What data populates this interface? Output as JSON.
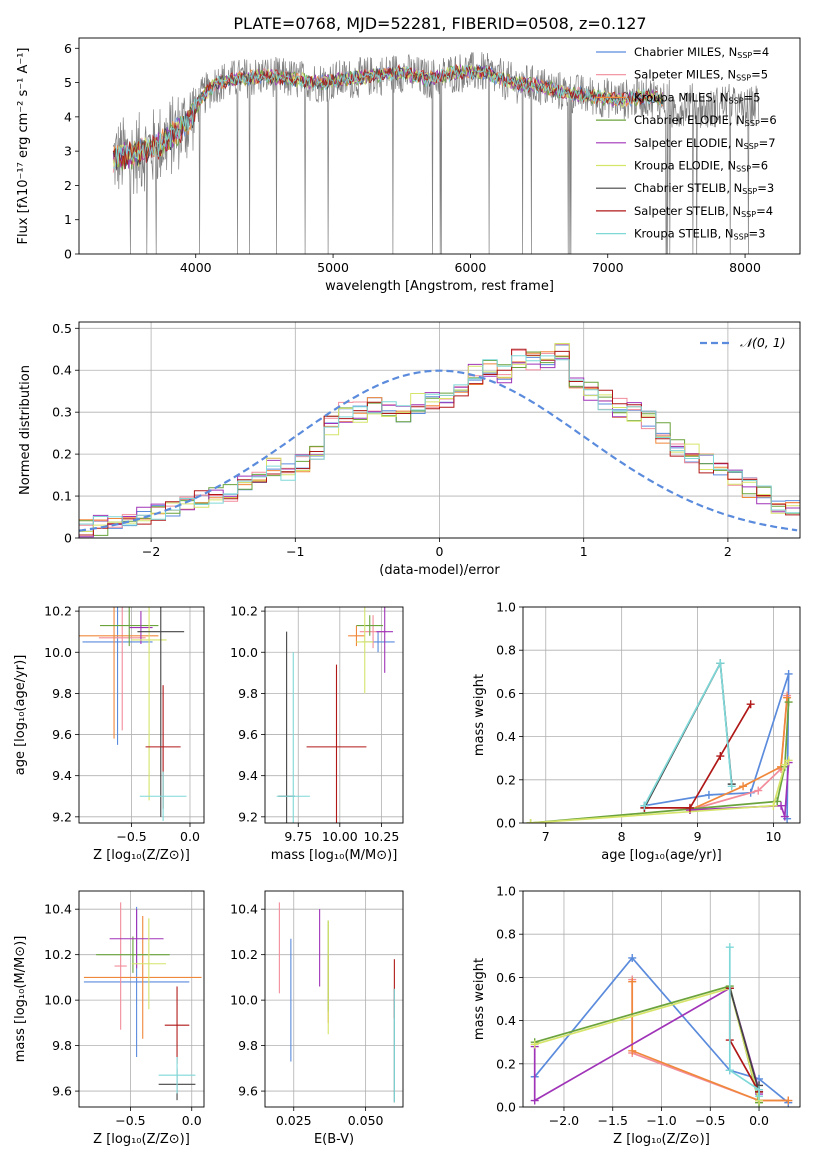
{
  "title": "PLATE=0768, MJD=52281, FIBERID=0508, z=0.127",
  "colors": {
    "chabrier_miles": "#5b8bdc",
    "salpeter_miles": "#f28c9a",
    "kroupa_miles": "#f0883c",
    "chabrier_elodie": "#6aa33c",
    "salpeter_elodie": "#a034b8",
    "kroupa_elodie": "#d6e46a",
    "chabrier_stelib": "#444444",
    "salpeter_stelib": "#b01818",
    "kroupa_stelib": "#7fd8d8",
    "data": "#808080",
    "normal": "#5b8bdc"
  },
  "chart_data": [
    {
      "id": "spectrum",
      "type": "line",
      "xlabel": "wavelength [Angstrom, rest frame]",
      "ylabel": "Flux [fλ10⁻¹⁷ erg cm⁻² s⁻¹ A⁻¹]",
      "xlim": [
        3150,
        8400
      ],
      "ylim": [
        0,
        6.3
      ],
      "xticks": [
        4000,
        5000,
        6000,
        7000,
        8000
      ],
      "yticks": [
        0,
        1,
        2,
        3,
        4,
        5,
        6
      ],
      "grid": false,
      "legend_position": "top-right",
      "legend": [
        {
          "label": "Chabrier MILES, N",
          "sub": "SSP",
          "val": "=4",
          "color": "chabrier_miles"
        },
        {
          "label": "Salpeter MILES, N",
          "sub": "SSP",
          "val": "=5",
          "color": "salpeter_miles"
        },
        {
          "label": "Kroupa MILES, N",
          "sub": "SSP",
          "val": "=5",
          "color": "kroupa_miles"
        },
        {
          "label": "Chabrier ELODIE, N",
          "sub": "SSP",
          "val": "=6",
          "color": "chabrier_elodie"
        },
        {
          "label": "Salpeter ELODIE, N",
          "sub": "SSP",
          "val": "=7",
          "color": "salpeter_elodie"
        },
        {
          "label": "Kroupa ELODIE, N",
          "sub": "SSP",
          "val": "=6",
          "color": "kroupa_elodie"
        },
        {
          "label": "Chabrier STELIB, N",
          "sub": "SSP",
          "val": "=3",
          "color": "chabrier_stelib"
        },
        {
          "label": "Salpeter STELIB, N",
          "sub": "SSP",
          "val": "=4",
          "color": "salpeter_stelib"
        },
        {
          "label": "Kroupa STELIB, N",
          "sub": "SSP",
          "val": "=3",
          "color": "kroupa_stelib"
        }
      ],
      "model_trend": [
        [
          3400,
          2.8
        ],
        [
          3550,
          2.9
        ],
        [
          3700,
          3.1
        ],
        [
          3850,
          3.5
        ],
        [
          3950,
          3.9
        ],
        [
          4050,
          4.6
        ],
        [
          4150,
          5.0
        ],
        [
          4300,
          5.1
        ],
        [
          4500,
          5.2
        ],
        [
          4700,
          5.1
        ],
        [
          4900,
          5.0
        ],
        [
          5100,
          5.1
        ],
        [
          5300,
          5.2
        ],
        [
          5500,
          5.3
        ],
        [
          5700,
          5.1
        ],
        [
          5900,
          5.3
        ],
        [
          6100,
          5.3
        ],
        [
          6300,
          5.0
        ],
        [
          6500,
          4.9
        ],
        [
          6700,
          4.7
        ],
        [
          6900,
          4.6
        ],
        [
          7100,
          4.5
        ],
        [
          7300,
          4.6
        ],
        [
          7400,
          4.5
        ]
      ],
      "data_range": [
        3400,
        8100
      ]
    },
    {
      "id": "residuals",
      "type": "bar",
      "xlabel": "(data-model)/error",
      "ylabel": "Normed distribution",
      "xlim": [
        -2.5,
        2.5
      ],
      "ylim": [
        0,
        0.515
      ],
      "xticks": [
        -2,
        -1,
        0,
        1,
        2
      ],
      "yticks": [
        0.0,
        0.1,
        0.2,
        0.3,
        0.4,
        0.5
      ],
      "grid": true,
      "legend_position": "top-right",
      "legend_label": "𝒩(0, 1)",
      "bin_width": 0.1,
      "bin_start": -2.5,
      "values": [
        0.025,
        0.03,
        0.035,
        0.04,
        0.05,
        0.06,
        0.07,
        0.08,
        0.09,
        0.1,
        0.11,
        0.13,
        0.15,
        0.17,
        0.16,
        0.18,
        0.21,
        0.27,
        0.3,
        0.3,
        0.32,
        0.31,
        0.3,
        0.32,
        0.33,
        0.33,
        0.36,
        0.39,
        0.4,
        0.39,
        0.43,
        0.42,
        0.42,
        0.44,
        0.38,
        0.35,
        0.33,
        0.31,
        0.3,
        0.28,
        0.25,
        0.22,
        0.2,
        0.18,
        0.16,
        0.14,
        0.12,
        0.1,
        0.08,
        0.07
      ]
    },
    {
      "id": "age-vs-z",
      "type": "scatter",
      "xlabel": "Z [log₁₀(Z/Z⊙)]",
      "ylabel": "age  [log₁₀(age/yr)]",
      "xlim": [
        -0.95,
        0.12
      ],
      "ylim": [
        9.17,
        10.22
      ],
      "xticks": [
        -0.5,
        0.0
      ],
      "xticklabels": [
        "−0.5",
        "0.0"
      ],
      "yticks": [
        9.2,
        9.4,
        9.6,
        9.8,
        10.0,
        10.2
      ],
      "grid": true,
      "points": [
        {
          "x": -0.62,
          "y": 10.05,
          "xerr": 0.3,
          "yerr": 0.5,
          "color": "chabrier_miles"
        },
        {
          "x": -0.58,
          "y": 10.07,
          "xerr": 0.2,
          "yerr": 0.45,
          "color": "salpeter_miles"
        },
        {
          "x": -0.65,
          "y": 10.08,
          "xerr": 0.38,
          "yerr": 0.5,
          "color": "kroupa_miles"
        },
        {
          "x": -0.52,
          "y": 10.13,
          "xerr": 0.25,
          "yerr": 0.1,
          "color": "chabrier_elodie"
        },
        {
          "x": -0.42,
          "y": 10.12,
          "xerr": 0.1,
          "yerr": 0.08,
          "color": "salpeter_elodie"
        },
        {
          "x": -0.35,
          "y": 10.06,
          "xerr": 0.15,
          "yerr": 0.78,
          "color": "kroupa_elodie"
        },
        {
          "x": -0.25,
          "y": 10.1,
          "xerr": 0.2,
          "yerr": 0.9,
          "color": "chabrier_stelib"
        },
        {
          "x": -0.23,
          "y": 9.54,
          "xerr": 0.15,
          "yerr": 0.3,
          "color": "salpeter_stelib"
        },
        {
          "x": -0.23,
          "y": 9.3,
          "xerr": 0.2,
          "yerr": 0.12,
          "color": "kroupa_stelib"
        }
      ]
    },
    {
      "id": "age-vs-mass",
      "type": "scatter",
      "xlabel": "mass [log₁₀(M/M⊙)]",
      "ylabel": "",
      "xlim": [
        9.55,
        10.38
      ],
      "ylim": [
        9.17,
        10.22
      ],
      "xticks": [
        9.75,
        10.0,
        10.25
      ],
      "xticklabels": [
        "9.75",
        "10.00",
        "10.25"
      ],
      "yticks": [
        9.2,
        9.4,
        9.6,
        9.8,
        10.0,
        10.2
      ],
      "grid": true,
      "points": [
        {
          "x": 10.23,
          "y": 10.05,
          "xerr": 0.1,
          "yerr": 0.05,
          "color": "chabrier_miles"
        },
        {
          "x": 10.2,
          "y": 10.1,
          "xerr": 0.08,
          "yerr": 0.08,
          "color": "salpeter_miles"
        },
        {
          "x": 10.1,
          "y": 10.08,
          "xerr": 0.05,
          "yerr": 0.05,
          "color": "kroupa_miles"
        },
        {
          "x": 10.18,
          "y": 10.13,
          "xerr": 0.08,
          "yerr": 0.05,
          "color": "chabrier_elodie"
        },
        {
          "x": 10.27,
          "y": 10.1,
          "xerr": 0.05,
          "yerr": 0.2,
          "color": "salpeter_elodie"
        },
        {
          "x": 10.15,
          "y": 10.05,
          "xerr": 0.05,
          "yerr": 0.25,
          "color": "kroupa_elodie"
        },
        {
          "x": 9.68,
          "y": 9.3,
          "xerr": 0.05,
          "yerr": 0.8,
          "color": "chabrier_stelib"
        },
        {
          "x": 9.98,
          "y": 9.54,
          "xerr": 0.18,
          "yerr": 0.4,
          "color": "salpeter_stelib"
        },
        {
          "x": 9.72,
          "y": 9.3,
          "xerr": 0.1,
          "yerr": 0.7,
          "color": "kroupa_stelib"
        }
      ]
    },
    {
      "id": "weight-vs-age",
      "type": "line",
      "xlabel": "age  [log₁₀(age/yr)]",
      "ylabel": "mass weight",
      "xlim": [
        6.7,
        10.35
      ],
      "ylim": [
        0,
        1
      ],
      "xticks": [
        7,
        8,
        9,
        10
      ],
      "yticks": [
        0.0,
        0.2,
        0.4,
        0.6,
        0.8,
        1.0
      ],
      "grid": true,
      "series": [
        {
          "color": "chabrier_miles",
          "x": [
            8.3,
            9.15,
            9.7,
            10.2,
            10.18
          ],
          "y": [
            0.08,
            0.13,
            0.14,
            0.69,
            0.02
          ]
        },
        {
          "color": "salpeter_miles",
          "x": [
            8.9,
            9.8,
            10.1,
            10.18
          ],
          "y": [
            0.06,
            0.15,
            0.25,
            0.59
          ]
        },
        {
          "color": "kroupa_miles",
          "x": [
            8.9,
            9.6,
            10.1,
            10.18
          ],
          "y": [
            0.06,
            0.17,
            0.26,
            0.58
          ]
        },
        {
          "color": "chabrier_elodie",
          "x": [
            6.8,
            10.05,
            10.15,
            10.2
          ],
          "y": [
            0.0,
            0.1,
            0.26,
            0.56
          ]
        },
        {
          "color": "salpeter_elodie",
          "x": [
            8.9,
            10.1,
            10.15,
            10.2
          ],
          "y": [
            0.06,
            0.08,
            0.03,
            0.28
          ]
        },
        {
          "color": "kroupa_elodie",
          "x": [
            6.8,
            10.0,
            10.15,
            10.2
          ],
          "y": [
            0.0,
            0.08,
            0.27,
            0.29
          ]
        },
        {
          "color": "chabrier_stelib",
          "x": [
            8.3,
            9.3,
            9.45
          ],
          "y": [
            0.07,
            0.74,
            0.18
          ]
        },
        {
          "color": "salpeter_stelib",
          "x": [
            8.3,
            8.9,
            9.3,
            9.7
          ],
          "y": [
            0.07,
            0.07,
            0.31,
            0.55
          ]
        },
        {
          "color": "kroupa_stelib",
          "x": [
            8.3,
            9.3,
            9.45
          ],
          "y": [
            0.08,
            0.74,
            0.17
          ]
        }
      ]
    },
    {
      "id": "mass-vs-z",
      "type": "scatter",
      "xlabel": "Z [log₁₀(Z/Z⊙)]",
      "ylabel": "mass [log₁₀(M/M⊙)]",
      "xlim": [
        -0.92,
        0.1
      ],
      "ylim": [
        9.53,
        10.48
      ],
      "xticks": [
        -0.5,
        0.0
      ],
      "xticklabels": [
        "−0.5",
        "0.0"
      ],
      "yticks": [
        9.6,
        9.8,
        10.0,
        10.2,
        10.4
      ],
      "grid": true,
      "points": [
        {
          "x": -0.45,
          "y": 10.08,
          "xerr": 0.43,
          "yerr": 0.33,
          "color": "chabrier_miles"
        },
        {
          "x": -0.58,
          "y": 10.15,
          "xerr": 0.05,
          "yerr": 0.28,
          "color": "salpeter_miles"
        },
        {
          "x": -0.4,
          "y": 10.1,
          "xerr": 0.48,
          "yerr": 0.27,
          "color": "kroupa_miles"
        },
        {
          "x": -0.48,
          "y": 10.2,
          "xerr": 0.3,
          "yerr": 0.08,
          "color": "chabrier_elodie"
        },
        {
          "x": -0.45,
          "y": 10.27,
          "xerr": 0.22,
          "yerr": 0.13,
          "color": "salpeter_elodie"
        },
        {
          "x": -0.35,
          "y": 10.16,
          "xerr": 0.14,
          "yerr": 0.2,
          "color": "kroupa_elodie"
        },
        {
          "x": -0.12,
          "y": 9.63,
          "xerr": 0.15,
          "yerr": 0.07,
          "color": "chabrier_stelib"
        },
        {
          "x": -0.12,
          "y": 9.89,
          "xerr": 0.1,
          "yerr": 0.17,
          "color": "salpeter_stelib"
        },
        {
          "x": -0.12,
          "y": 9.67,
          "xerr": 0.15,
          "yerr": 0.08,
          "color": "kroupa_stelib"
        }
      ]
    },
    {
      "id": "mass-vs-ebv",
      "type": "scatter",
      "xlabel": "E(B-V)",
      "ylabel": "",
      "xlim": [
        0.015,
        0.063
      ],
      "ylim": [
        9.53,
        10.48
      ],
      "xticks": [
        0.025,
        0.05
      ],
      "xticklabels": [
        "0.025",
        "0.050"
      ],
      "yticks": [
        9.6,
        9.8,
        10.0,
        10.2,
        10.4
      ],
      "grid": true,
      "points": [
        {
          "x": 0.024,
          "y": 10.0,
          "xerr": 0,
          "yerr": 0.27,
          "color": "chabrier_miles"
        },
        {
          "x": 0.02,
          "y": 10.23,
          "xerr": 0,
          "yerr": 0.2,
          "color": "salpeter_miles"
        },
        {
          "x": 0.037,
          "y": 10.05,
          "xerr": 0,
          "yerr": 0.15,
          "color": "kroupa_miles"
        },
        {
          "x": 0.037,
          "y": 10.15,
          "xerr": 0,
          "yerr": 0.2,
          "color": "chabrier_elodie"
        },
        {
          "x": 0.034,
          "y": 10.23,
          "xerr": 0,
          "yerr": 0.17,
          "color": "salpeter_elodie"
        },
        {
          "x": 0.037,
          "y": 10.1,
          "xerr": 0,
          "yerr": 0.25,
          "color": "kroupa_elodie"
        },
        {
          "x": 0.06,
          "y": 9.8,
          "xerr": 0,
          "yerr": 0.25,
          "color": "chabrier_stelib"
        },
        {
          "x": 0.06,
          "y": 10.05,
          "xerr": 0,
          "yerr": 0.13,
          "color": "salpeter_stelib"
        },
        {
          "x": 0.06,
          "y": 9.8,
          "xerr": 0,
          "yerr": 0.25,
          "color": "kroupa_stelib"
        }
      ]
    },
    {
      "id": "weight-vs-z",
      "type": "line",
      "xlabel": "Z [log₁₀(Z/Z⊙)]",
      "ylabel": "mass weight",
      "xlim": [
        -2.42,
        0.42
      ],
      "ylim": [
        0,
        1
      ],
      "xticks": [
        -2.0,
        -1.5,
        -1.0,
        -0.5,
        0.0
      ],
      "xticklabels": [
        "−2.0",
        "−1.5",
        "−1.0",
        "−0.5",
        "0.0"
      ],
      "yticks": [
        0.0,
        0.2,
        0.4,
        0.6,
        0.8,
        1.0
      ],
      "grid": true,
      "series": [
        {
          "color": "chabrier_miles",
          "x": [
            -2.3,
            -1.3,
            -0.3,
            0.0,
            0.3
          ],
          "y": [
            0.14,
            0.69,
            0.17,
            0.13,
            0.02
          ]
        },
        {
          "color": "salpeter_miles",
          "x": [
            -1.3,
            -1.3,
            0.0,
            0.3
          ],
          "y": [
            0.59,
            0.25,
            0.03,
            0.03
          ]
        },
        {
          "color": "kroupa_miles",
          "x": [
            -1.3,
            -1.3,
            0.0,
            0.3
          ],
          "y": [
            0.58,
            0.26,
            0.03,
            0.03
          ]
        },
        {
          "color": "chabrier_elodie",
          "x": [
            -2.3,
            -0.3,
            0.0
          ],
          "y": [
            0.3,
            0.56,
            0.02
          ]
        },
        {
          "color": "salpeter_elodie",
          "x": [
            -2.3,
            -2.3,
            -0.3,
            0.0,
            0.0
          ],
          "y": [
            0.28,
            0.03,
            0.55,
            0.08,
            0.06
          ]
        },
        {
          "color": "kroupa_elodie",
          "x": [
            -2.3,
            -0.3,
            0.0
          ],
          "y": [
            0.29,
            0.55,
            0.03
          ]
        },
        {
          "color": "chabrier_stelib",
          "x": [
            -0.3,
            0.0,
            0.0
          ],
          "y": [
            0.55,
            0.07,
            0.1
          ]
        },
        {
          "color": "salpeter_stelib",
          "x": [
            -0.3,
            -0.3,
            0.0
          ],
          "y": [
            0.55,
            0.31,
            0.07
          ]
        },
        {
          "color": "kroupa_stelib",
          "x": [
            -0.3,
            -0.3,
            0.0,
            0.0
          ],
          "y": [
            0.74,
            0.17,
            0.08,
            0.05
          ]
        }
      ]
    }
  ]
}
